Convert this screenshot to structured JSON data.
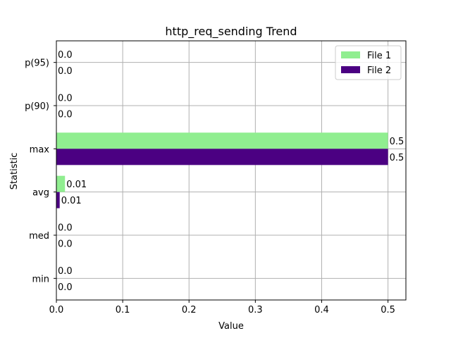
{
  "chart_data": {
    "type": "bar",
    "orientation": "horizontal",
    "title": "http_req_sending Trend",
    "xlabel": "Value",
    "ylabel": "Statistic",
    "categories": [
      "min",
      "med",
      "avg",
      "max",
      "p(90)",
      "p(95)"
    ],
    "x_ticks": [
      "0.0",
      "0.1",
      "0.2",
      "0.3",
      "0.4",
      "0.5"
    ],
    "xlim": [
      0,
      0.527
    ],
    "grid": true,
    "legend_position": "top-right",
    "series": [
      {
        "name": "File 1",
        "color": "#90ee90",
        "values": [
          0,
          0,
          0.013,
          0.5,
          0,
          0
        ],
        "labels": [
          "0.0",
          "0.0",
          "0.01",
          "0.5",
          "0.0",
          "0.0"
        ]
      },
      {
        "name": "File 2",
        "color": "#4b0082",
        "values": [
          0,
          0,
          0.005,
          0.5,
          0,
          0
        ],
        "labels": [
          "0.0",
          "0.0",
          "0.01",
          "0.5",
          "0.0",
          "0.0"
        ]
      }
    ]
  }
}
